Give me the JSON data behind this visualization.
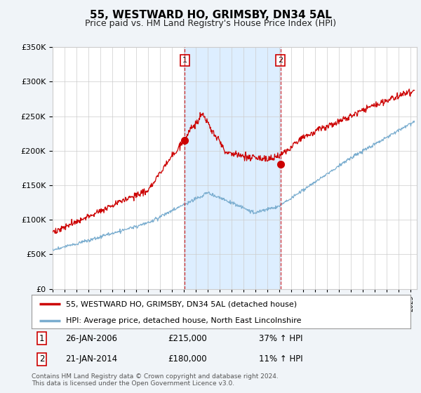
{
  "title": "55, WESTWARD HO, GRIMSBY, DN34 5AL",
  "subtitle": "Price paid vs. HM Land Registry's House Price Index (HPI)",
  "legend_line1": "55, WESTWARD HO, GRIMSBY, DN34 5AL (detached house)",
  "legend_line2": "HPI: Average price, detached house, North East Lincolnshire",
  "transaction1_date": "26-JAN-2006",
  "transaction1_price": "£215,000",
  "transaction1_hpi": "37% ↑ HPI",
  "transaction1_year": 2006.07,
  "transaction1_value": 215000,
  "transaction2_date": "21-JAN-2014",
  "transaction2_price": "£180,000",
  "transaction2_hpi": "11% ↑ HPI",
  "transaction2_year": 2014.07,
  "transaction2_value": 180000,
  "footer": "Contains HM Land Registry data © Crown copyright and database right 2024.\nThis data is licensed under the Open Government Licence v3.0.",
  "ylim": [
    0,
    350000
  ],
  "xlim_start": 1995.0,
  "xlim_end": 2025.5,
  "red_color": "#cc0000",
  "blue_color": "#7aadcf",
  "shade_color": "#ddeeff",
  "background_color": "#f0f4f8",
  "plot_bg_color": "#ffffff",
  "grid_color": "#cccccc",
  "title_fontsize": 11,
  "subtitle_fontsize": 9
}
